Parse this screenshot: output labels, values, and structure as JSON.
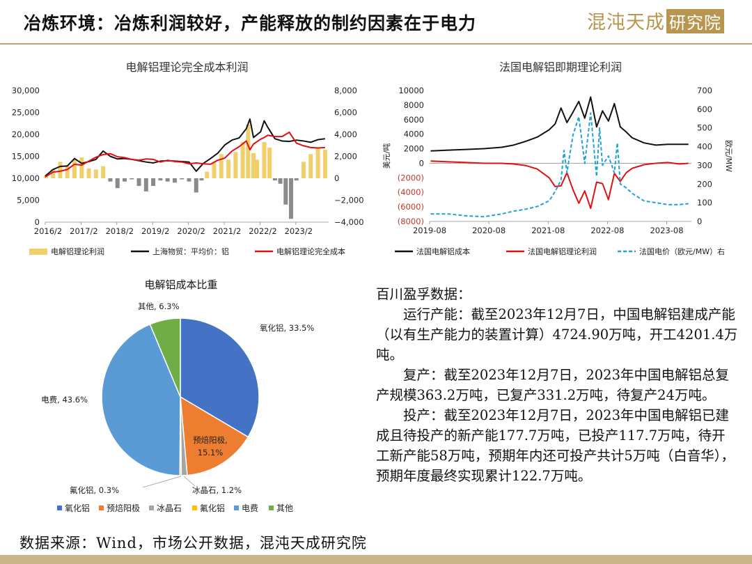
{
  "header": {
    "title": "冶炼环境：冶炼利润较好，产能释放的制约因素在于电力",
    "logo": "混沌天成",
    "logo_box": "研究院"
  },
  "chart_data": [
    {
      "id": "chart1",
      "type": "line",
      "title": "电解铝理论完全成本利润",
      "x_tick_labels": [
        "2016/2",
        "2017/2",
        "2018/2",
        "2019/2",
        "2020/2",
        "2021/2",
        "2022/2",
        "2023/2"
      ],
      "left_axis": {
        "ylim": [
          0,
          30000
        ],
        "tick_labels": [
          "0",
          "5,000",
          "10,000",
          "15,000",
          "20,000",
          "25,000",
          "30,000"
        ]
      },
      "right_axis": {
        "ylim": [
          -4000,
          8000
        ],
        "tick_labels": [
          "−4,000",
          "−2,000",
          "0",
          "2,000",
          "4,000",
          "6,000",
          "8,000"
        ]
      },
      "x_range": [
        2016.083,
        2024.0
      ],
      "series": [
        {
          "name": "电解铝理论利润",
          "kind": "bar",
          "axis": "right",
          "color": "#f2cf6a",
          "x": [
            2016.1,
            2016.3,
            2016.5,
            2016.7,
            2016.9,
            2017.1,
            2017.3,
            2017.5,
            2017.7,
            2017.9,
            2018.1,
            2018.3,
            2018.5,
            2018.7,
            2018.9,
            2019.1,
            2019.3,
            2019.5,
            2019.7,
            2019.9,
            2020.1,
            2020.3,
            2020.45,
            2020.6,
            2020.8,
            2021.0,
            2021.2,
            2021.4,
            2021.6,
            2021.75,
            2021.9,
            2022.0,
            2022.2,
            2022.35,
            2022.5,
            2022.65,
            2022.8,
            2022.95,
            2023.1,
            2023.3,
            2023.5,
            2023.7,
            2023.9
          ],
          "y": [
            200,
            800,
            1500,
            1200,
            1700,
            1900,
            900,
            800,
            1100,
            -300,
            -900,
            -300,
            -100,
            -700,
            -1200,
            -700,
            -200,
            -300,
            -400,
            -100,
            -300,
            -1300,
            -200,
            600,
            1500,
            2200,
            1700,
            2400,
            3300,
            4900,
            2300,
            1700,
            3300,
            2800,
            -200,
            -500,
            -2400,
            -3700,
            -200,
            1500,
            2200,
            2800,
            2600
          ]
        },
        {
          "name": "上海物贸：平均价：铝",
          "kind": "line",
          "axis": "left",
          "color": "#111111",
          "x": [
            2016.08,
            2016.3,
            2016.5,
            2016.7,
            2016.9,
            2017.1,
            2017.3,
            2017.5,
            2017.7,
            2017.9,
            2018.1,
            2018.3,
            2018.5,
            2018.7,
            2018.9,
            2019.1,
            2019.3,
            2019.5,
            2019.7,
            2019.9,
            2020.1,
            2020.3,
            2020.5,
            2020.7,
            2020.9,
            2021.1,
            2021.3,
            2021.5,
            2021.7,
            2021.8,
            2021.9,
            2022.1,
            2022.2,
            2022.3,
            2022.5,
            2022.7,
            2022.9,
            2023.1,
            2023.3,
            2023.5,
            2023.7,
            2023.9
          ],
          "y": [
            10500,
            12000,
            12700,
            12800,
            14500,
            13400,
            13800,
            14300,
            16200,
            15000,
            14400,
            14500,
            14300,
            14000,
            13700,
            13500,
            13900,
            14000,
            13900,
            13800,
            13700,
            11600,
            13400,
            14500,
            15700,
            17600,
            18700,
            19200,
            21300,
            23500,
            19300,
            20600,
            23100,
            21600,
            19000,
            18500,
            18400,
            18700,
            18500,
            18200,
            18800,
            19000
          ]
        },
        {
          "name": "电解铝理论完全成本",
          "kind": "line",
          "axis": "left",
          "color": "#e11010",
          "x": [
            2016.08,
            2016.3,
            2016.5,
            2016.7,
            2016.9,
            2017.1,
            2017.3,
            2017.5,
            2017.7,
            2017.9,
            2018.1,
            2018.3,
            2018.5,
            2018.7,
            2018.9,
            2019.1,
            2019.3,
            2019.5,
            2019.7,
            2019.9,
            2020.1,
            2020.3,
            2020.5,
            2020.7,
            2020.9,
            2021.1,
            2021.3,
            2021.5,
            2021.7,
            2021.8,
            2021.9,
            2022.1,
            2022.2,
            2022.3,
            2022.5,
            2022.7,
            2022.9,
            2023.1,
            2023.3,
            2023.5,
            2023.7,
            2023.9
          ],
          "y": [
            10300,
            11400,
            11600,
            12000,
            13200,
            13000,
            13900,
            14800,
            15400,
            15600,
            14900,
            14700,
            14300,
            14100,
            14400,
            14300,
            13700,
            14100,
            13800,
            13700,
            13300,
            13500,
            13300,
            13200,
            14100,
            14600,
            16200,
            17200,
            18500,
            16500,
            17800,
            18900,
            19300,
            19800,
            19500,
            19500,
            20500,
            18000,
            17400,
            17000,
            16900,
            17000
          ]
        }
      ],
      "legend": [
        "电解铝理论利润",
        "上海物贸：平均价：铝",
        "电解铝理论完全成本"
      ],
      "legend_position": "bottom"
    },
    {
      "id": "chart2",
      "type": "line",
      "title": "法国电解铝即期理论利润",
      "ylabel": "美元/吨",
      "y2label": "欧元/MW",
      "x_tick_labels": [
        "2019-08",
        "2020-08",
        "2021-08",
        "2022-08",
        "2023-08"
      ],
      "left_axis": {
        "ylim": [
          -8000,
          10000
        ],
        "tick_labels": [
          "(8000)",
          "(6000)",
          "(4000)",
          "(2000)",
          "0",
          "2000",
          "4000",
          "6000",
          "8000",
          "10000"
        ],
        "negative_color": "#c0392b"
      },
      "right_axis": {
        "ylim": [
          0,
          700
        ],
        "tick_labels": [
          "0",
          "100",
          "200",
          "300",
          "400",
          "500",
          "600",
          "700"
        ]
      },
      "x_range": [
        2019.583,
        2024.0
      ],
      "series": [
        {
          "name": "法国电解铝成本",
          "kind": "line",
          "axis": "left",
          "color": "#111111",
          "x": [
            2019.6,
            2019.9,
            2020.2,
            2020.5,
            2020.8,
            2021.0,
            2021.2,
            2021.4,
            2021.6,
            2021.7,
            2021.8,
            2021.9,
            2022.0,
            2022.1,
            2022.2,
            2022.3,
            2022.4,
            2022.5,
            2022.6,
            2022.7,
            2022.8,
            2022.9,
            2023.0,
            2023.2,
            2023.4,
            2023.6,
            2023.8,
            2023.95
          ],
          "y": [
            1700,
            1800,
            1900,
            2000,
            2200,
            2500,
            3000,
            3600,
            4600,
            5400,
            7600,
            5600,
            7000,
            8500,
            6200,
            9100,
            5000,
            7200,
            5800,
            8200,
            5000,
            4300,
            3500,
            2800,
            2500,
            2600,
            2600,
            2600
          ]
        },
        {
          "name": "法国电解铝理论利润",
          "kind": "line",
          "axis": "left",
          "color": "#e11010",
          "x": [
            2019.6,
            2019.9,
            2020.2,
            2020.5,
            2020.8,
            2021.0,
            2021.2,
            2021.4,
            2021.6,
            2021.7,
            2021.8,
            2021.9,
            2022.0,
            2022.1,
            2022.2,
            2022.3,
            2022.4,
            2022.5,
            2022.6,
            2022.7,
            2022.8,
            2022.9,
            2023.0,
            2023.2,
            2023.4,
            2023.6,
            2023.8,
            2023.95
          ],
          "y": [
            300,
            200,
            100,
            0,
            0,
            -100,
            -300,
            -800,
            -2000,
            -3200,
            -3100,
            -1300,
            -3600,
            -5500,
            -3800,
            -6200,
            -2600,
            -2800,
            -5000,
            -1400,
            -2500,
            -1300,
            -700,
            -200,
            0,
            100,
            -100,
            0
          ]
        },
        {
          "name": "法国电价（欧元/MW）右",
          "kind": "line",
          "axis": "right",
          "color": "#1fa3d6",
          "dashed": true,
          "x": [
            2019.6,
            2019.9,
            2020.2,
            2020.5,
            2020.8,
            2021.0,
            2021.2,
            2021.4,
            2021.6,
            2021.7,
            2021.8,
            2021.85,
            2021.9,
            2022.0,
            2022.1,
            2022.2,
            2022.3,
            2022.4,
            2022.45,
            2022.5,
            2022.6,
            2022.7,
            2022.75,
            2022.8,
            2022.9,
            2023.0,
            2023.2,
            2023.4,
            2023.6,
            2023.8,
            2023.95
          ],
          "y": [
            40,
            40,
            30,
            25,
            40,
            55,
            65,
            80,
            110,
            160,
            220,
            380,
            260,
            460,
            560,
            310,
            580,
            240,
            500,
            300,
            350,
            260,
            420,
            200,
            180,
            150,
            110,
            100,
            90,
            90,
            95
          ]
        }
      ],
      "legend": [
        "法国电解铝成本",
        "法国电解铝理论利润",
        "法国电价（欧元/MW）右"
      ],
      "legend_position": "bottom"
    },
    {
      "id": "chart3",
      "type": "pie",
      "title": "电解铝成本比重",
      "slices": [
        {
          "name": "氧化铝",
          "value": 33.5,
          "label": "氧化铝, 33.5%",
          "color": "#4472c4"
        },
        {
          "name": "预焙阳极",
          "value": 15.1,
          "label_name": "预焙阳极,",
          "label_value": "15.1%",
          "color": "#ed7d31"
        },
        {
          "name": "冰晶石",
          "value": 1.2,
          "label": "冰晶石, 1.2%",
          "color": "#a5a5a5"
        },
        {
          "name": "氟化铝",
          "value": 0.3,
          "label": "氟化铝, 0.3%",
          "color": "#ffc000"
        },
        {
          "name": "电费",
          "value": 43.6,
          "label": "电费, 43.6%",
          "color": "#5b9bd5"
        },
        {
          "name": "其他",
          "value": 6.3,
          "label": "其他, 6.3%",
          "color": "#70ad47"
        }
      ],
      "legend_position": "bottom"
    }
  ],
  "textblock": {
    "heading": "百川盈孚数据：",
    "p1": "运行产能：截至2023年12月7日，中国电解铝建成产能（以有生产能力的装置计算）4724.90万吨，开工4201.4万吨。",
    "p2": "复产：截至2023年12月7日，2023年中国电解铝总复产规模363.2万吨，已复产331.2万吨，待复产24万吨。",
    "p3": "投产：截至2023年12月7日，2023年中国电解铝已建成且待投产的新产能177.7万吨，已投产117.7万吨，待开工新产能58万吨，预期年内还可投产共计5万吨（白音华），预期年度最终实现累计122.7万吨。"
  },
  "footer": {
    "source": "数据来源：Wind，市场公开数据，混沌天成研究院"
  }
}
